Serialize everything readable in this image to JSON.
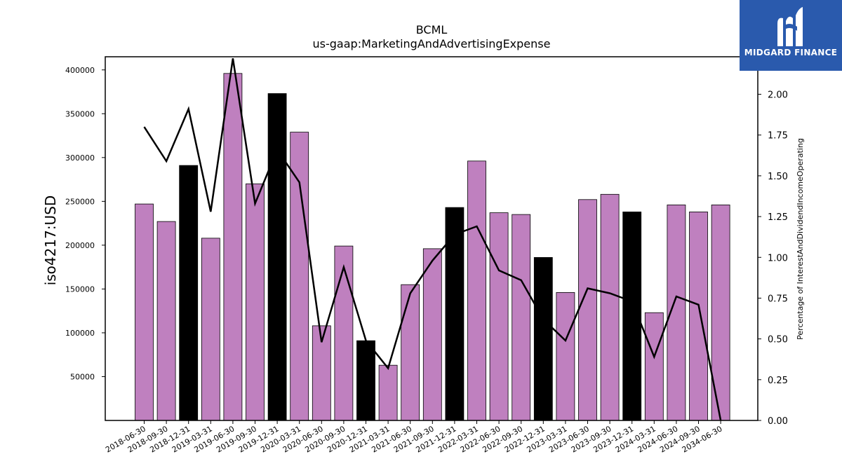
{
  "chart_data": {
    "type": "bar",
    "title": "BCML",
    "subtitle": "us-gaap:MarketingAndAdvertisingExpense",
    "ylabel": "iso4217:USD",
    "ylabel_right": "Percentage of InterestAndDividendIncomeOperating",
    "ylim": [
      0,
      415000
    ],
    "ylim_right": [
      0,
      2.23
    ],
    "yticks": [
      50000,
      100000,
      150000,
      200000,
      250000,
      300000,
      350000,
      400000
    ],
    "yticks_right": [
      "0.00",
      "0.25",
      "0.50",
      "0.75",
      "1.00",
      "1.25",
      "1.50",
      "1.75",
      "2.00"
    ],
    "categories": [
      "2018-06-30",
      "2018-09-30",
      "2018-12-31",
      "2019-03-31",
      "2019-06-30",
      "2019-09-30",
      "2019-12-31",
      "2020-03-31",
      "2020-06-30",
      "2020-09-30",
      "2020-12-31",
      "2021-03-31",
      "2021-06-30",
      "2021-09-30",
      "2021-12-31",
      "2022-03-31",
      "2022-06-30",
      "2022-09-30",
      "2022-12-31",
      "2023-03-31",
      "2023-06-30",
      "2023-09-30",
      "2023-12-31",
      "2024-03-31",
      "2024-06-30",
      "2024-09-30",
      "2034-06-30"
    ],
    "series": [
      {
        "values": [
          247000,
          227000,
          291000,
          208000,
          396000,
          270000,
          373000,
          329000,
          108000,
          199000,
          91000,
          63000,
          155000,
          196000,
          243000,
          296000,
          237000,
          235000,
          186000,
          146000,
          252000,
          258000,
          238000,
          123000,
          246000,
          238000,
          246000
        ]
      },
      {
        "axis": "right",
        "values": [
          1.8,
          1.59,
          1.91,
          1.28,
          2.22,
          1.33,
          1.66,
          1.46,
          0.48,
          0.94,
          0.49,
          0.32,
          0.78,
          0.98,
          1.14,
          1.19,
          0.92,
          0.86,
          0.62,
          0.49,
          0.81,
          0.78,
          0.73,
          0.39,
          0.76,
          0.71,
          0.0
        ]
      }
    ],
    "highlight_indices": [
      2,
      6,
      10,
      14,
      18,
      22
    ],
    "colors": {
      "bar": "#bf80bf",
      "bar_highlight": "#000000",
      "line": "#000000",
      "bar_edge": "#000000"
    },
    "grid": false
  },
  "logo": {
    "text": "MIDGARD FINANCE",
    "background": "#2a5aad"
  }
}
